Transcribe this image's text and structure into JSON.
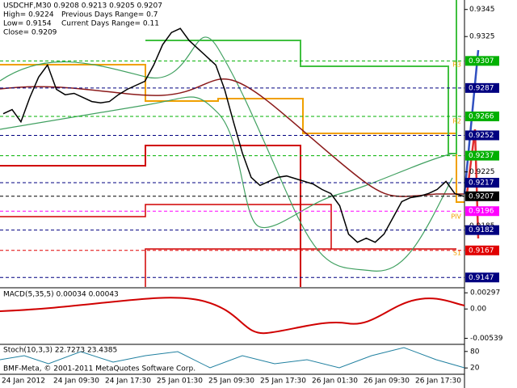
{
  "header": {
    "symbol_line": "USDCHF,M30  0.9208 0.9213 0.9205 0.9207",
    "high": "High= 0.9224",
    "low": "Low= 0.9154",
    "close": "Close= 0.9209",
    "previous_range": "Previous Days Range= 0.7",
    "current_range": "Current Days Range= 0.11"
  },
  "price_axis": {
    "ylim": [
      0.914,
      0.9352
    ],
    "ticks": [
      0.9345,
      0.9325,
      0.9225,
      0.9185
    ]
  },
  "level_boxes": [
    {
      "value": 0.9307,
      "color": "#00b000"
    },
    {
      "value": 0.9287,
      "color": "#000080"
    },
    {
      "value": 0.9266,
      "color": "#00b000"
    },
    {
      "value": 0.9252,
      "color": "#000080"
    },
    {
      "value": 0.9237,
      "color": "#00b000"
    },
    {
      "value": 0.9217,
      "color": "#000080"
    },
    {
      "value": 0.9207,
      "color": "#000000"
    },
    {
      "value": 0.9196,
      "color": "#ff00ff"
    },
    {
      "value": 0.9182,
      "color": "#000080"
    },
    {
      "value": 0.9167,
      "color": "#e00000"
    },
    {
      "value": 0.9147,
      "color": "#000080"
    }
  ],
  "level_tags": [
    "R3",
    "R2",
    "PIV",
    "S1"
  ],
  "price": [
    0.9268,
    0.9271,
    0.9262,
    0.928,
    0.9295,
    0.9304,
    0.9286,
    0.9282,
    0.9283,
    0.928,
    0.9277,
    0.9276,
    0.9277,
    0.9282,
    0.9286,
    0.9289,
    0.9292,
    0.9304,
    0.9319,
    0.9328,
    0.9331,
    0.9322,
    0.9316,
    0.931,
    0.9304,
    0.9286,
    0.9262,
    0.9239,
    0.9221,
    0.9215,
    0.9218,
    0.9221,
    0.9222,
    0.922,
    0.9218,
    0.9216,
    0.9212,
    0.9209,
    0.92,
    0.9179,
    0.9173,
    0.9176,
    0.9173,
    0.9179,
    0.9191,
    0.9203,
    0.9206,
    0.9207,
    0.9209,
    0.9212,
    0.9218,
    0.9209,
    0.9207
  ],
  "macd": {
    "title": "MACD(5,35,5) 0.00034 0.00043",
    "ylim": [
      -0.0062,
      0.0036
    ],
    "ticks": [
      0.00297,
      {
        "value": 0,
        "label": "0.00"
      },
      -0.00539
    ]
  },
  "stoch": {
    "title": "Stoch(10,3,3) 22.7273 23.4385",
    "ylim": [
      0,
      100
    ],
    "ticks": [
      80,
      20
    ]
  },
  "copyright": "BMF-Meta, © 2001-2011 MetaQuotes Software Corp.",
  "time_axis": [
    "24 Jan 2012",
    "24 Jan 09:30",
    "24 Jan 17:30",
    "25 Jan 01:30",
    "25 Jan 09:30",
    "25 Jan 17:30",
    "26 Jan 01:30",
    "26 Jan 09:30",
    "26 Jan 17:30"
  ]
}
